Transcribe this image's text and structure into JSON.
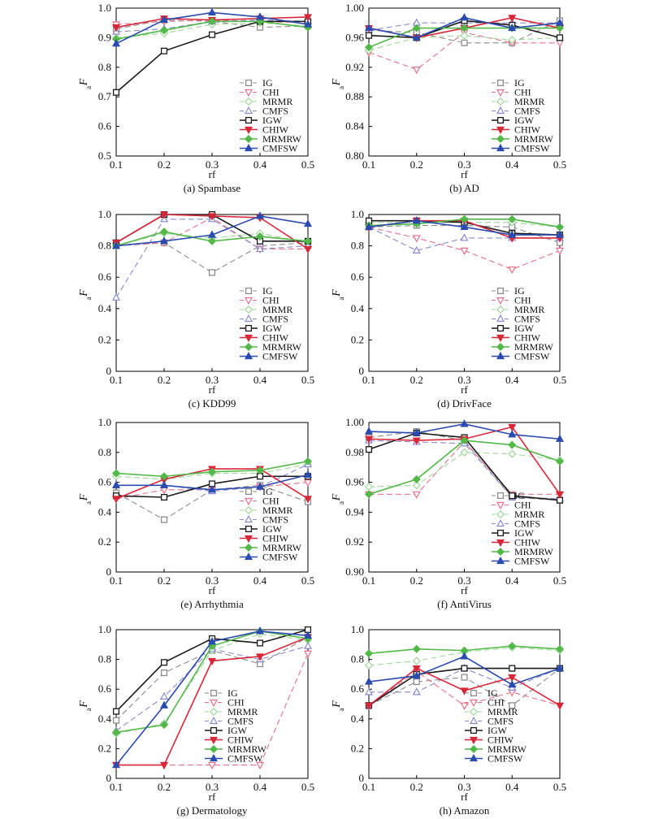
{
  "series_styles": [
    {
      "name": "IG",
      "color": "#8c8c8c",
      "marker": "square",
      "dashed": true,
      "filled": false
    },
    {
      "name": "CHI",
      "color": "#e8708a",
      "marker": "tri-down",
      "dashed": true,
      "filled": false
    },
    {
      "name": "MRMR",
      "color": "#9fd89a",
      "marker": "diamond",
      "dashed": true,
      "filled": false
    },
    {
      "name": "CMFS",
      "color": "#8a8ad0",
      "marker": "tri-up",
      "dashed": true,
      "filled": false
    },
    {
      "name": "IGW",
      "color": "#1a1a1a",
      "marker": "square",
      "dashed": false,
      "filled": false
    },
    {
      "name": "CHIW",
      "color": "#d9273a",
      "marker": "tri-down",
      "dashed": false,
      "filled": true
    },
    {
      "name": "MRMRW",
      "color": "#52b848",
      "marker": "diamond",
      "dashed": false,
      "filled": true
    },
    {
      "name": "CMFSW",
      "color": "#2a4bb0",
      "marker": "tri-up",
      "dashed": false,
      "filled": true
    }
  ],
  "chart_data": [
    {
      "type": "line",
      "caption": "(a) Spambase",
      "xlabel": "rf",
      "ylabel": "F",
      "ylabel_sub": "a",
      "x": [
        0.1,
        0.2,
        0.3,
        0.4,
        0.5
      ],
      "xticks": [
        "0.1",
        "0.2",
        "0.3",
        "0.4",
        "0.5"
      ],
      "ylim": [
        0.5,
        1.0
      ],
      "yticks": [
        "0.5",
        "0.6",
        "0.7",
        "0.8",
        "0.9",
        "1.0"
      ],
      "series": [
        {
          "name": "IG",
          "values": [
            0.93,
            0.96,
            0.955,
            0.935,
            0.94
          ]
        },
        {
          "name": "CHI",
          "values": [
            0.945,
            0.955,
            0.96,
            0.955,
            0.95
          ]
        },
        {
          "name": "MRMR",
          "values": [
            0.9,
            0.915,
            0.945,
            0.95,
            0.94
          ]
        },
        {
          "name": "CMFS",
          "values": [
            0.92,
            0.93,
            0.955,
            0.96,
            0.955
          ]
        },
        {
          "name": "IGW",
          "values": [
            0.715,
            0.855,
            0.91,
            0.955,
            0.955
          ]
        },
        {
          "name": "CHIW",
          "values": [
            0.935,
            0.965,
            0.96,
            0.965,
            0.97
          ]
        },
        {
          "name": "MRMRW",
          "values": [
            0.895,
            0.925,
            0.955,
            0.955,
            0.935
          ]
        },
        {
          "name": "CMFSW",
          "values": [
            0.88,
            0.96,
            0.985,
            0.97,
            0.945
          ]
        }
      ]
    },
    {
      "type": "line",
      "caption": "(b) AD",
      "xlabel": "rf",
      "ylabel": "F",
      "ylabel_sub": "a",
      "x": [
        0.1,
        0.2,
        0.3,
        0.4,
        0.5
      ],
      "xticks": [
        "0.1",
        "0.2",
        "0.3",
        "0.4",
        "0.5"
      ],
      "ylim": [
        0.8,
        1.0
      ],
      "yticks": [
        "0.80",
        "0.84",
        "0.88",
        "0.92",
        "0.96",
        "1.00"
      ],
      "series": [
        {
          "name": "IG",
          "values": [
            0.97,
            0.967,
            0.953,
            0.953,
            0.983
          ]
        },
        {
          "name": "CHI",
          "values": [
            0.94,
            0.917,
            0.967,
            0.953,
            0.953
          ]
        },
        {
          "name": "MRMR",
          "values": [
            0.943,
            0.96,
            0.963,
            0.957,
            0.96
          ]
        },
        {
          "name": "CMFS",
          "values": [
            0.97,
            0.98,
            0.98,
            0.98,
            0.98
          ]
        },
        {
          "name": "IGW",
          "values": [
            0.963,
            0.96,
            0.983,
            0.977,
            0.96
          ]
        },
        {
          "name": "CHIW",
          "values": [
            0.973,
            0.96,
            0.973,
            0.987,
            0.973
          ]
        },
        {
          "name": "MRMRW",
          "values": [
            0.947,
            0.973,
            0.973,
            0.973,
            0.973
          ]
        },
        {
          "name": "CMFSW",
          "values": [
            0.973,
            0.96,
            0.987,
            0.973,
            0.98
          ]
        }
      ]
    },
    {
      "type": "line",
      "caption": "(c) KDD99",
      "xlabel": "rf",
      "ylabel": "F",
      "ylabel_sub": "a",
      "x": [
        0.1,
        0.2,
        0.3,
        0.4,
        0.5
      ],
      "xticks": [
        "0.1",
        "0.2",
        "0.3",
        "0.4",
        "0.5"
      ],
      "ylim": [
        0.0,
        1.0
      ],
      "yticks": [
        "0",
        "0.2",
        "0.4",
        "0.6",
        "0.8",
        "1.0"
      ],
      "series": [
        {
          "name": "IG",
          "values": [
            0.8,
            0.82,
            0.63,
            0.8,
            0.82
          ]
        },
        {
          "name": "CHI",
          "values": [
            0.8,
            0.82,
            0.98,
            0.78,
            0.78
          ]
        },
        {
          "name": "MRMR",
          "values": [
            0.8,
            0.88,
            0.85,
            0.88,
            0.82
          ]
        },
        {
          "name": "CMFS",
          "values": [
            0.47,
            0.97,
            0.97,
            0.78,
            0.8
          ]
        },
        {
          "name": "IGW",
          "values": [
            0.82,
            1.0,
            1.0,
            0.83,
            0.83
          ]
        },
        {
          "name": "CHIW",
          "values": [
            0.82,
            1.0,
            0.99,
            0.98,
            0.78
          ]
        },
        {
          "name": "MRMRW",
          "values": [
            0.8,
            0.89,
            0.83,
            0.86,
            0.83
          ]
        },
        {
          "name": "CMFSW",
          "values": [
            0.8,
            0.83,
            0.87,
            0.99,
            0.94
          ]
        }
      ]
    },
    {
      "type": "line",
      "caption": "(d) DrivFace",
      "xlabel": "rf",
      "ylabel": "F",
      "ylabel_sub": "a",
      "x": [
        0.1,
        0.2,
        0.3,
        0.4,
        0.5
      ],
      "xticks": [
        "0.1",
        "0.2",
        "0.3",
        "0.4",
        "0.5"
      ],
      "ylim": [
        0.0,
        1.0
      ],
      "yticks": [
        "0",
        "0.2",
        "0.4",
        "0.6",
        "0.8",
        "1.0"
      ],
      "series": [
        {
          "name": "IG",
          "values": [
            0.92,
            0.93,
            0.93,
            0.92,
            0.82
          ]
        },
        {
          "name": "CHI",
          "values": [
            0.92,
            0.85,
            0.77,
            0.65,
            0.77
          ]
        },
        {
          "name": "MRMR",
          "values": [
            0.95,
            0.95,
            0.95,
            0.95,
            0.92
          ]
        },
        {
          "name": "CMFS",
          "values": [
            0.92,
            0.77,
            0.85,
            0.85,
            0.85
          ]
        },
        {
          "name": "IGW",
          "values": [
            0.96,
            0.96,
            0.95,
            0.88,
            0.87
          ]
        },
        {
          "name": "CHIW",
          "values": [
            0.92,
            0.96,
            0.96,
            0.85,
            0.85
          ]
        },
        {
          "name": "MRMRW",
          "values": [
            0.93,
            0.94,
            0.97,
            0.97,
            0.92
          ]
        },
        {
          "name": "CMFSW",
          "values": [
            0.92,
            0.96,
            0.92,
            0.87,
            0.87
          ]
        }
      ]
    },
    {
      "type": "line",
      "caption": "(e) Arrhythmia",
      "xlabel": "rf",
      "ylabel": "F",
      "ylabel_sub": "a",
      "x": [
        0.1,
        0.2,
        0.3,
        0.4,
        0.5
      ],
      "xticks": [
        "0.1",
        "0.2",
        "0.3",
        "0.4",
        "0.5"
      ],
      "ylim": [
        0.0,
        1.0
      ],
      "yticks": [
        "0",
        "0.2",
        "0.4",
        "0.6",
        "0.8",
        "1.0"
      ],
      "series": [
        {
          "name": "IG",
          "values": [
            0.53,
            0.35,
            0.55,
            0.58,
            0.47
          ]
        },
        {
          "name": "CHI",
          "values": [
            0.49,
            0.55,
            0.55,
            0.57,
            0.6
          ]
        },
        {
          "name": "MRMR",
          "values": [
            0.64,
            0.62,
            0.66,
            0.66,
            0.72
          ]
        },
        {
          "name": "CMFS",
          "values": [
            0.58,
            0.58,
            0.54,
            0.57,
            0.72
          ]
        },
        {
          "name": "IGW",
          "values": [
            0.51,
            0.5,
            0.59,
            0.64,
            0.64
          ]
        },
        {
          "name": "CHIW",
          "values": [
            0.49,
            0.62,
            0.69,
            0.69,
            0.49
          ]
        },
        {
          "name": "MRMRW",
          "values": [
            0.66,
            0.64,
            0.67,
            0.68,
            0.74
          ]
        },
        {
          "name": "CMFSW",
          "values": [
            0.58,
            0.58,
            0.55,
            0.57,
            0.65
          ]
        }
      ]
    },
    {
      "type": "line",
      "caption": "(f) AntiVirus",
      "xlabel": "rf",
      "ylabel": "F",
      "ylabel_sub": "a",
      "x": [
        0.1,
        0.2,
        0.3,
        0.4,
        0.5
      ],
      "xticks": [
        "0.1",
        "0.2",
        "0.3",
        "0.4",
        "0.5"
      ],
      "ylim": [
        0.9,
        1.0
      ],
      "yticks": [
        "0.90",
        "0.92",
        "0.94",
        "0.96",
        "0.98",
        "1.00"
      ],
      "series": [
        {
          "name": "IG",
          "values": [
            0.99,
            0.994,
            0.988,
            0.95,
            0.948
          ]
        },
        {
          "name": "CHI",
          "values": [
            0.952,
            0.952,
            0.987,
            0.952,
            0.952
          ]
        },
        {
          "name": "MRMR",
          "values": [
            0.957,
            0.958,
            0.98,
            0.979,
            0.975
          ]
        },
        {
          "name": "CMFS",
          "values": [
            0.988,
            0.987,
            0.986,
            0.95,
            0.949
          ]
        },
        {
          "name": "IGW",
          "values": [
            0.982,
            0.993,
            0.99,
            0.951,
            0.948
          ]
        },
        {
          "name": "CHIW",
          "values": [
            0.989,
            0.988,
            0.989,
            0.997,
            0.952
          ]
        },
        {
          "name": "MRMRW",
          "values": [
            0.952,
            0.962,
            0.988,
            0.985,
            0.974
          ]
        },
        {
          "name": "CMFSW",
          "values": [
            0.994,
            0.993,
            0.999,
            0.992,
            0.989
          ]
        }
      ]
    },
    {
      "type": "line",
      "caption": "(g) Dermatology",
      "xlabel": "rf",
      "ylabel": "F",
      "ylabel_sub": "a",
      "x": [
        0.1,
        0.2,
        0.3,
        0.4,
        0.5
      ],
      "xticks": [
        "0.1",
        "0.2",
        "0.3",
        "0.4",
        "0.5"
      ],
      "ylim": [
        0.0,
        1.0
      ],
      "yticks": [
        "0",
        "0.2",
        "0.4",
        "0.6",
        "0.8",
        "1.0"
      ],
      "series": [
        {
          "name": "IG",
          "values": [
            0.39,
            0.71,
            0.86,
            0.77,
            0.95
          ]
        },
        {
          "name": "CHI",
          "values": [
            0.09,
            0.09,
            0.09,
            0.09,
            0.84
          ]
        },
        {
          "name": "MRMR",
          "values": [
            0.3,
            0.37,
            0.86,
            0.97,
            0.93
          ]
        },
        {
          "name": "CMFS",
          "values": [
            0.32,
            0.55,
            0.87,
            0.8,
            0.89
          ]
        },
        {
          "name": "IGW",
          "values": [
            0.45,
            0.78,
            0.94,
            0.91,
            1.0
          ]
        },
        {
          "name": "CHIW",
          "values": [
            0.09,
            0.09,
            0.79,
            0.82,
            0.95
          ]
        },
        {
          "name": "MRMRW",
          "values": [
            0.31,
            0.36,
            0.89,
            0.99,
            0.94
          ]
        },
        {
          "name": "CMFSW",
          "values": [
            0.09,
            0.49,
            0.92,
            0.99,
            0.96
          ]
        }
      ]
    },
    {
      "type": "line",
      "caption": "(h) Amazon",
      "xlabel": "rf",
      "ylabel": "F",
      "ylabel_sub": "a",
      "x": [
        0.1,
        0.2,
        0.3,
        0.4,
        0.5
      ],
      "xticks": [
        "0.1",
        "0.2",
        "0.3",
        "0.4",
        "0.5"
      ],
      "ylim": [
        0.0,
        1.0
      ],
      "yticks": [
        "0",
        "0.2",
        "0.4",
        "0.6",
        "0.8",
        "1.0"
      ],
      "series": [
        {
          "name": "IG",
          "values": [
            0.49,
            0.65,
            0.68,
            0.49,
            0.74
          ]
        },
        {
          "name": "CHI",
          "values": [
            0.49,
            0.72,
            0.49,
            0.58,
            0.49
          ]
        },
        {
          "name": "MRMR",
          "values": [
            0.76,
            0.79,
            0.85,
            0.88,
            0.86
          ]
        },
        {
          "name": "CMFS",
          "values": [
            0.58,
            0.58,
            0.74,
            0.61,
            0.74
          ]
        },
        {
          "name": "IGW",
          "values": [
            0.49,
            0.7,
            0.74,
            0.74,
            0.74
          ]
        },
        {
          "name": "CHIW",
          "values": [
            0.49,
            0.74,
            0.59,
            0.68,
            0.49
          ]
        },
        {
          "name": "MRMRW",
          "values": [
            0.84,
            0.87,
            0.86,
            0.89,
            0.87
          ]
        },
        {
          "name": "CMFSW",
          "values": [
            0.65,
            0.69,
            0.82,
            0.63,
            0.74
          ]
        }
      ]
    }
  ]
}
